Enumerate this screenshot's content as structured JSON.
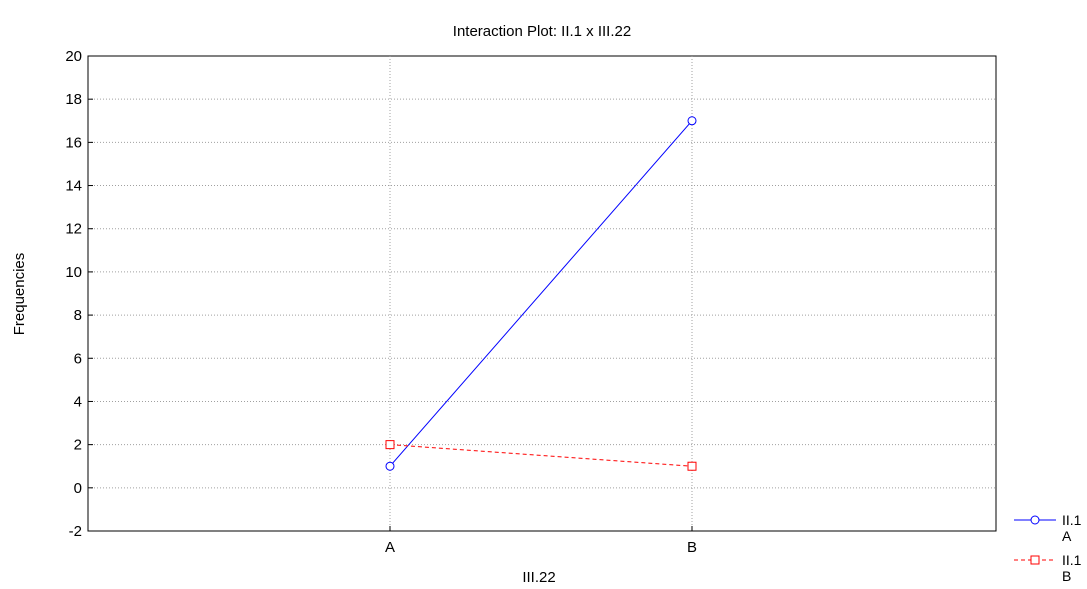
{
  "chart_data": {
    "type": "line",
    "title": "Interaction Plot: II.1 x III.22",
    "xlabel": "III.22",
    "ylabel": "Frequencies",
    "categories": [
      "A",
      "B"
    ],
    "ylim": [
      -2,
      20
    ],
    "yticks": [
      -2,
      0,
      2,
      4,
      6,
      8,
      10,
      12,
      14,
      16,
      18,
      20
    ],
    "grid": true,
    "legend_position": "bottom-right",
    "series": [
      {
        "name_line1": "II.1",
        "name_line2": "A",
        "values": [
          1,
          17
        ],
        "color": "#0000ff",
        "marker": "circle",
        "linestyle": "solid"
      },
      {
        "name_line1": "II.1",
        "name_line2": "B",
        "values": [
          2,
          1
        ],
        "color": "#ff0000",
        "marker": "square",
        "linestyle": "dashed"
      }
    ]
  }
}
